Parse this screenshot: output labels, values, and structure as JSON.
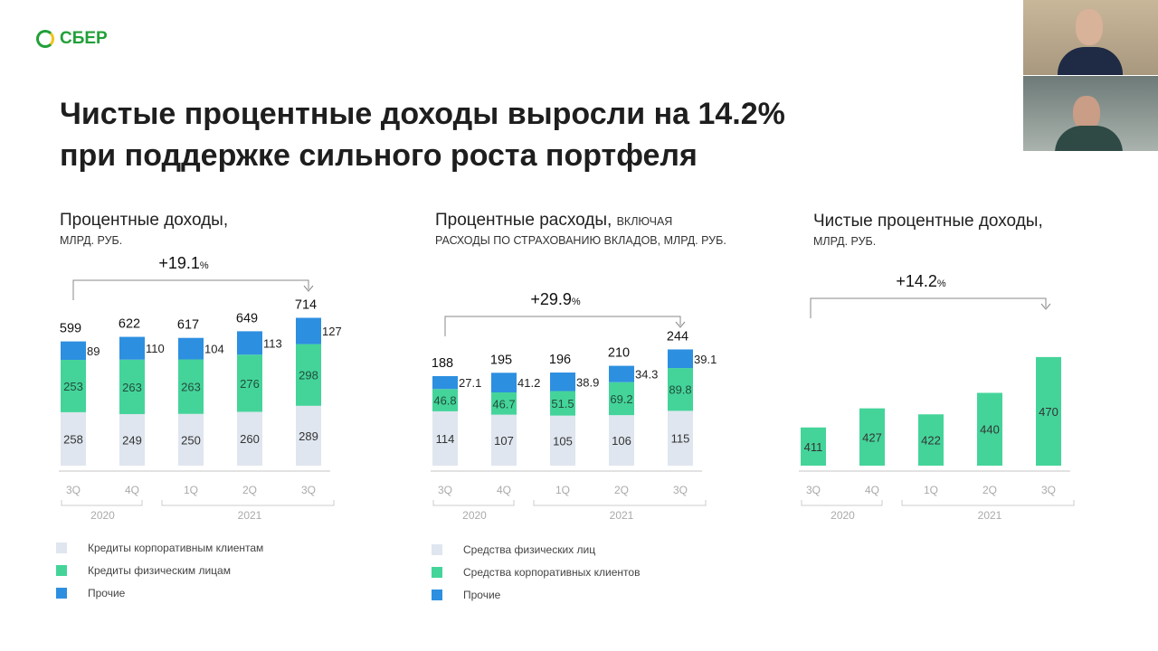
{
  "brand": "СБЕР",
  "title_lines": [
    "Чистые процентные доходы выросли на 14.2%",
    "при поддержке сильного роста портфеля"
  ],
  "colors": {
    "base": "#dfe6ef",
    "mid": "#44d49a",
    "top": "#2d8fe0",
    "brand": "#21a038"
  },
  "chart_data": [
    {
      "type": "bar",
      "stacked": true,
      "title": "Процентные доходы,",
      "subtitle": "МЛРД. РУБ.",
      "categories": [
        "3Q",
        "4Q",
        "1Q",
        "2Q",
        "3Q"
      ],
      "years": [
        {
          "label": "2020",
          "span": 2
        },
        {
          "label": "2021",
          "span": 3
        }
      ],
      "series": [
        {
          "name": "Кредиты корпоративным клиентам",
          "values": [
            258,
            249,
            250,
            260,
            289
          ]
        },
        {
          "name": "Кредиты физическим лицам",
          "values": [
            253,
            263,
            263,
            276,
            298
          ]
        },
        {
          "name": "Прочие",
          "values": [
            89,
            110,
            104,
            113,
            127
          ]
        }
      ],
      "totals": [
        599,
        622,
        617,
        649,
        714
      ],
      "growth": "+19.1",
      "growth_unit": "%"
    },
    {
      "type": "bar",
      "stacked": true,
      "title": "Процентные расходы,",
      "title_suffix": "включая",
      "subtitle": "расходы по страхованию вкладов, млрд. руб.",
      "categories": [
        "3Q",
        "4Q",
        "1Q",
        "2Q",
        "3Q"
      ],
      "years": [
        {
          "label": "2020",
          "span": 2
        },
        {
          "label": "2021",
          "span": 3
        }
      ],
      "series": [
        {
          "name": "Средства физических лиц",
          "values": [
            114,
            107,
            105,
            106,
            115
          ]
        },
        {
          "name": "Средства корпоративных клиентов",
          "values": [
            46.8,
            46.7,
            51.5,
            69.2,
            89.8
          ]
        },
        {
          "name": "Прочие",
          "values": [
            27.1,
            41.2,
            38.9,
            34.3,
            39.1
          ]
        }
      ],
      "totals": [
        188,
        195,
        196,
        210,
        244
      ],
      "growth": "+29.9",
      "growth_unit": "%"
    },
    {
      "type": "bar",
      "title": "Чистые процентные доходы,",
      "subtitle": "МЛРД. РУБ.",
      "categories": [
        "3Q",
        "4Q",
        "1Q",
        "2Q",
        "3Q"
      ],
      "years": [
        {
          "label": "2020",
          "span": 2
        },
        {
          "label": "2021",
          "span": 3
        }
      ],
      "series": [
        {
          "values": [
            411,
            427,
            422,
            440,
            470
          ]
        }
      ],
      "growth": "+14.2",
      "growth_unit": "%"
    }
  ]
}
